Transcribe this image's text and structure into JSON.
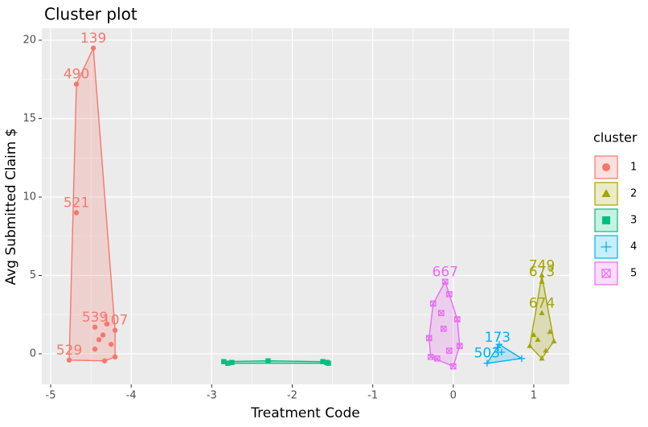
{
  "chart_data": {
    "type": "scatter",
    "title": "Cluster plot",
    "x_label": "Treatment Code",
    "y_label": "Avg Submitted Claim $",
    "legend_title": "cluster",
    "xlim": [
      -5.11,
      1.44
    ],
    "ylim": [
      -1.95,
      20.77
    ],
    "xticks": [
      -5,
      -4,
      -3,
      -2,
      -1,
      0,
      1
    ],
    "yticks": [
      0,
      5,
      10,
      15,
      20
    ],
    "grid": true,
    "series": [
      {
        "name": "1",
        "color": "#F8766D",
        "shape": "circle",
        "x": [
          -4.47,
          -4.68,
          -4.68,
          -4.77,
          -4.45,
          -4.2,
          -4.35,
          -4.25,
          -4.45,
          -4.2,
          -4.33,
          -4.4,
          -4.3
        ],
        "y": [
          19.5,
          17.2,
          9.0,
          -0.4,
          1.7,
          1.5,
          1.2,
          0.6,
          0.3,
          -0.2,
          -0.45,
          0.9,
          1.9
        ],
        "labels": [
          "139",
          "490",
          "521",
          "529",
          "539",
          "107",
          null,
          null,
          null,
          null,
          null,
          null,
          null
        ]
      },
      {
        "name": "2",
        "color": "#A3A500",
        "shape": "triangle",
        "x": [
          1.1,
          1.1,
          1.1,
          0.95,
          1.25,
          1.1,
          1.0,
          1.2,
          1.15,
          1.05
        ],
        "y": [
          5.0,
          4.6,
          2.6,
          0.5,
          0.8,
          -0.3,
          1.2,
          1.4,
          0.2,
          0.9
        ],
        "labels": [
          "749",
          "673",
          "674",
          null,
          null,
          null,
          null,
          null,
          null,
          null
        ]
      },
      {
        "name": "3",
        "color": "#00BF7D",
        "shape": "square",
        "x": [
          -2.8,
          -2.3,
          -1.57,
          -2.85,
          -2.75,
          -1.62,
          -1.55
        ],
        "y": [
          -0.6,
          -0.45,
          -0.55,
          -0.5,
          -0.55,
          -0.5,
          -0.6
        ],
        "labels": [
          null,
          null,
          null,
          null,
          null,
          null,
          null
        ]
      },
      {
        "name": "4",
        "color": "#00B0F6",
        "shape": "plus",
        "x": [
          0.55,
          0.42,
          0.57,
          0.85,
          0.6
        ],
        "y": [
          0.4,
          -0.6,
          0.6,
          -0.3,
          0.1
        ],
        "labels": [
          "173",
          "503",
          null,
          null,
          null
        ]
      },
      {
        "name": "5",
        "color": "#E76BF3",
        "shape": "boxx",
        "x": [
          -0.1,
          -0.25,
          -0.05,
          0.05,
          -0.15,
          -0.3,
          0.08,
          -0.2,
          0.0,
          -0.12,
          -0.05,
          -0.28
        ],
        "y": [
          4.6,
          3.2,
          3.8,
          2.2,
          2.6,
          1.0,
          0.5,
          -0.3,
          -0.8,
          1.6,
          0.2,
          -0.2
        ],
        "labels": [
          "667",
          null,
          null,
          null,
          null,
          null,
          null,
          null,
          null,
          null,
          null,
          null
        ]
      }
    ]
  }
}
